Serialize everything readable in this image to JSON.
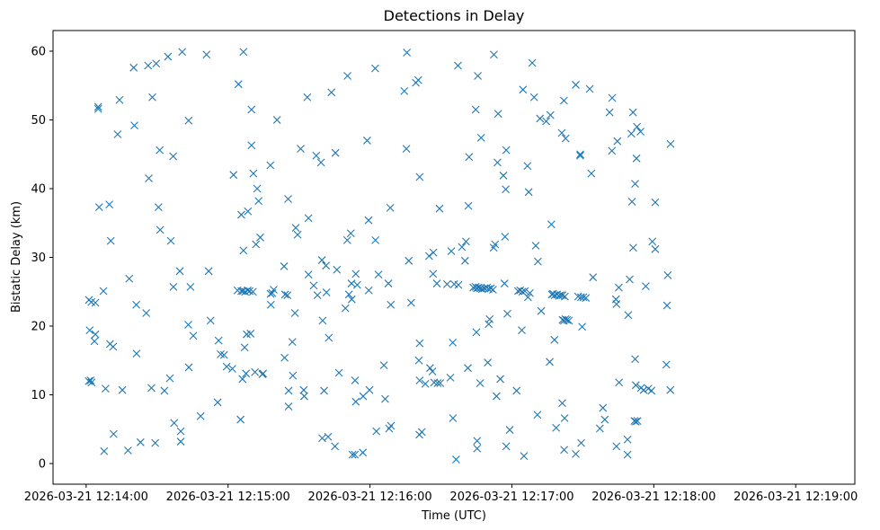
{
  "chart_data": {
    "type": "scatter",
    "title": "Detections in Delay",
    "xlabel": "Time (UTC)",
    "ylabel": "Bistatic Delay (km)",
    "x_unit": "seconds after 2026-03-21 12:14:00 UTC",
    "xlim": [
      -14,
      325
    ],
    "ylim": [
      -3,
      63
    ],
    "marker": "x",
    "color": "#1f77b4",
    "x_ticks": [
      {
        "value": 0,
        "label": "2026-03-21 12:14:00"
      },
      {
        "value": 60,
        "label": "2026-03-21 12:15:00"
      },
      {
        "value": 120,
        "label": "2026-03-21 12:16:00"
      },
      {
        "value": 180,
        "label": "2026-03-21 12:17:00"
      },
      {
        "value": 240,
        "label": "2026-03-21 12:18:00"
      },
      {
        "value": 300,
        "label": "2026-03-21 12:19:00"
      }
    ],
    "y_ticks": [
      {
        "value": 0,
        "label": "0"
      },
      {
        "value": 10,
        "label": "10"
      },
      {
        "value": 20,
        "label": "20"
      },
      {
        "value": 30,
        "label": "30"
      },
      {
        "value": 40,
        "label": "40"
      },
      {
        "value": 50,
        "label": "50"
      },
      {
        "value": 60,
        "label": "60"
      }
    ],
    "points": [
      [
        5.1,
        51.9
      ],
      [
        5.1,
        51.6
      ],
      [
        5.5,
        37.3
      ],
      [
        1.2,
        23.8
      ],
      [
        2.2,
        23.5
      ],
      [
        3.9,
        23.4
      ],
      [
        1.5,
        19.4
      ],
      [
        3.9,
        18.8
      ],
      [
        3.5,
        17.8
      ],
      [
        1.1,
        12.0
      ],
      [
        1.9,
        12.1
      ],
      [
        2.3,
        11.8
      ],
      [
        7.3,
        25.1
      ],
      [
        9.8,
        37.7
      ],
      [
        10.4,
        32.4
      ],
      [
        10.1,
        17.4
      ],
      [
        11.4,
        17.0
      ],
      [
        8.2,
        10.9
      ],
      [
        7.6,
        1.8
      ],
      [
        11.6,
        4.3
      ],
      [
        13.3,
        47.9
      ],
      [
        14.1,
        52.9
      ],
      [
        15.3,
        10.7
      ],
      [
        18.2,
        26.9
      ],
      [
        17.7,
        1.9
      ],
      [
        20.1,
        57.6
      ],
      [
        20.4,
        49.2
      ],
      [
        21.3,
        16.0
      ],
      [
        21.2,
        23.1
      ],
      [
        23.0,
        3.1
      ],
      [
        25.4,
        21.9
      ],
      [
        26.2,
        57.9
      ],
      [
        26.5,
        41.5
      ],
      [
        28.0,
        53.3
      ],
      [
        27.6,
        11.0
      ],
      [
        29.6,
        58.2
      ],
      [
        29.2,
        3.0
      ],
      [
        30.6,
        37.3
      ],
      [
        31.1,
        45.6
      ],
      [
        31.3,
        34.0
      ],
      [
        33.1,
        10.6
      ],
      [
        34.6,
        59.2
      ],
      [
        35.4,
        12.4
      ],
      [
        35.8,
        32.4
      ],
      [
        36.8,
        44.7
      ],
      [
        36.9,
        25.7
      ],
      [
        37.2,
        5.9
      ],
      [
        39.6,
        28.0
      ],
      [
        40.6,
        59.9
      ],
      [
        40.0,
        4.7
      ],
      [
        40.0,
        3.2
      ],
      [
        43.3,
        49.9
      ],
      [
        43.2,
        20.2
      ],
      [
        43.4,
        14.0
      ],
      [
        44.1,
        25.7
      ],
      [
        45.3,
        18.6
      ],
      [
        48.4,
        6.9
      ],
      [
        50.9,
        59.5
      ],
      [
        51.8,
        28.0
      ],
      [
        52.6,
        20.8
      ],
      [
        55.6,
        8.9
      ],
      [
        56.0,
        17.9
      ],
      [
        56.9,
        15.9
      ],
      [
        59.4,
        14.1
      ],
      [
        58.3,
        15.8
      ],
      [
        61.8,
        13.8
      ],
      [
        62.3,
        42.0
      ],
      [
        64.0,
        25.2
      ],
      [
        64.4,
        55.2
      ],
      [
        65.3,
        6.4
      ],
      [
        65.6,
        36.2
      ],
      [
        65.6,
        25.1
      ],
      [
        66.5,
        59.9
      ],
      [
        66.3,
        25.1
      ],
      [
        66.1,
        12.3
      ],
      [
        66.5,
        31.0
      ],
      [
        67.0,
        16.9
      ],
      [
        67.2,
        25.0
      ],
      [
        67.9,
        18.8
      ],
      [
        67.6,
        13.1
      ],
      [
        68.4,
        36.7
      ],
      [
        68.3,
        25.2
      ],
      [
        69.1,
        25.1
      ],
      [
        69.5,
        18.9
      ],
      [
        69.9,
        51.5
      ],
      [
        69.9,
        46.3
      ],
      [
        70.7,
        42.2
      ],
      [
        70.5,
        25.0
      ],
      [
        72.3,
        40.0
      ],
      [
        71.8,
        31.9
      ],
      [
        71.4,
        13.3
      ],
      [
        72.9,
        38.2
      ],
      [
        73.6,
        32.9
      ],
      [
        74.5,
        13.0
      ],
      [
        74.8,
        13.1
      ],
      [
        77.9,
        43.4
      ],
      [
        78.0,
        24.7
      ],
      [
        78.1,
        23.1
      ],
      [
        78.7,
        24.8
      ],
      [
        79.3,
        25.3
      ],
      [
        80.7,
        50.0
      ],
      [
        83.7,
        28.7
      ],
      [
        84.1,
        24.6
      ],
      [
        83.9,
        15.4
      ],
      [
        85.1,
        24.5
      ],
      [
        85.4,
        38.5
      ],
      [
        85.6,
        10.6
      ],
      [
        85.6,
        8.3
      ],
      [
        87.2,
        17.7
      ],
      [
        87.4,
        12.8
      ],
      [
        88.6,
        34.3
      ],
      [
        88.3,
        21.9
      ],
      [
        89.4,
        33.3
      ],
      [
        90.7,
        45.8
      ],
      [
        92.0,
        10.7
      ],
      [
        92.2,
        9.8
      ],
      [
        93.5,
        53.3
      ],
      [
        94.0,
        35.7
      ],
      [
        94.0,
        27.5
      ],
      [
        96.2,
        25.9
      ],
      [
        97.3,
        44.8
      ],
      [
        97.8,
        24.5
      ],
      [
        99.3,
        43.8
      ],
      [
        99.7,
        29.6
      ],
      [
        100.0,
        20.8
      ],
      [
        100.6,
        10.6
      ],
      [
        101.4,
        28.8
      ],
      [
        101.6,
        24.9
      ],
      [
        102.6,
        18.3
      ],
      [
        103.7,
        54.0
      ],
      [
        105.4,
        45.2
      ],
      [
        106.0,
        28.2
      ],
      [
        106.9,
        13.2
      ],
      [
        99.8,
        3.7
      ],
      [
        102.3,
        3.9
      ],
      [
        105.2,
        2.5
      ],
      [
        110.5,
        56.4
      ],
      [
        110.4,
        32.5
      ],
      [
        111.1,
        24.6
      ],
      [
        111.9,
        33.5
      ],
      [
        112.2,
        26.2
      ],
      [
        112.3,
        23.9
      ],
      [
        109.6,
        22.6
      ],
      [
        114.0,
        27.6
      ],
      [
        114.6,
        26.0
      ],
      [
        113.7,
        12.1
      ],
      [
        114.0,
        9.0
      ],
      [
        112.6,
        1.3
      ],
      [
        113.6,
        1.3
      ],
      [
        117.1,
        9.8
      ],
      [
        117.0,
        1.6
      ],
      [
        118.8,
        47.0
      ],
      [
        119.4,
        35.4
      ],
      [
        119.5,
        25.2
      ],
      [
        119.8,
        10.7
      ],
      [
        122.2,
        57.5
      ],
      [
        122.3,
        32.5
      ],
      [
        122.7,
        4.7
      ],
      [
        123.6,
        27.5
      ],
      [
        125.9,
        14.3
      ],
      [
        126.4,
        9.4
      ],
      [
        127.8,
        26.2
      ],
      [
        128.1,
        5.1
      ],
      [
        128.9,
        5.5
      ],
      [
        128.6,
        37.2
      ],
      [
        128.8,
        23.1
      ],
      [
        134.5,
        54.2
      ],
      [
        135.6,
        59.8
      ],
      [
        135.4,
        45.8
      ],
      [
        136.4,
        29.5
      ],
      [
        137.4,
        23.4
      ],
      [
        139.4,
        55.4
      ],
      [
        140.4,
        55.8
      ],
      [
        141.0,
        41.7
      ],
      [
        141.0,
        17.5
      ],
      [
        140.7,
        15.0
      ],
      [
        141.0,
        12.1
      ],
      [
        140.9,
        4.2
      ],
      [
        141.9,
        4.6
      ],
      [
        143.4,
        11.6
      ],
      [
        145.0,
        30.2
      ],
      [
        146.8,
        30.7
      ],
      [
        146.7,
        27.6
      ],
      [
        145.4,
        13.9
      ],
      [
        146.4,
        13.4
      ],
      [
        147.1,
        11.8
      ],
      [
        148.3,
        26.2
      ],
      [
        148.6,
        11.7
      ],
      [
        149.7,
        11.7
      ],
      [
        149.4,
        37.1
      ],
      [
        152.6,
        26.1
      ],
      [
        154.0,
        12.5
      ],
      [
        154.4,
        30.9
      ],
      [
        155.0,
        17.6
      ],
      [
        155.1,
        6.6
      ],
      [
        155.6,
        26.1
      ],
      [
        156.4,
        0.6
      ],
      [
        157.2,
        57.9
      ],
      [
        157.4,
        26.0
      ],
      [
        158.9,
        31.5
      ],
      [
        160.2,
        29.5
      ],
      [
        160.6,
        32.3
      ],
      [
        161.6,
        37.5
      ],
      [
        161.4,
        13.9
      ],
      [
        161.9,
        44.6
      ],
      [
        163.7,
        25.6
      ],
      [
        164.7,
        25.7
      ],
      [
        165.2,
        25.5
      ],
      [
        165.9,
        25.6
      ],
      [
        166.7,
        25.5
      ],
      [
        167.4,
        25.4
      ],
      [
        168.4,
        25.5
      ],
      [
        169.5,
        25.6
      ],
      [
        170.1,
        25.4
      ],
      [
        171.1,
        25.5
      ],
      [
        172.0,
        25.3
      ],
      [
        164.7,
        51.5
      ],
      [
        165.6,
        56.4
      ],
      [
        165.0,
        19.1
      ],
      [
        165.3,
        3.3
      ],
      [
        165.3,
        2.2
      ],
      [
        167.0,
        47.4
      ],
      [
        166.6,
        11.7
      ],
      [
        169.8,
        14.7
      ],
      [
        170.6,
        21.0
      ],
      [
        170.2,
        20.3
      ],
      [
        172.3,
        31.4
      ],
      [
        172.4,
        59.5
      ],
      [
        172.9,
        31.9
      ],
      [
        174.2,
        50.9
      ],
      [
        173.5,
        9.8
      ],
      [
        173.9,
        43.8
      ],
      [
        175.1,
        12.3
      ],
      [
        176.4,
        41.9
      ],
      [
        177.6,
        45.6
      ],
      [
        177.4,
        39.9
      ],
      [
        177.1,
        33.0
      ],
      [
        176.9,
        26.2
      ],
      [
        178.1,
        21.8
      ],
      [
        177.6,
        2.5
      ],
      [
        179.1,
        4.9
      ],
      [
        182.0,
        10.6
      ],
      [
        182.6,
        25.1
      ],
      [
        183.5,
        25.2
      ],
      [
        184.4,
        25.0
      ],
      [
        185.5,
        25.1
      ],
      [
        184.7,
        54.4
      ],
      [
        184.2,
        19.4
      ],
      [
        185.1,
        1.1
      ],
      [
        186.6,
        43.3
      ],
      [
        187.1,
        39.5
      ],
      [
        186.8,
        24.2
      ],
      [
        187.6,
        24.8
      ],
      [
        188.6,
        58.3
      ],
      [
        189.4,
        53.3
      ],
      [
        190.1,
        31.7
      ],
      [
        191.0,
        29.4
      ],
      [
        190.8,
        7.1
      ],
      [
        191.9,
        50.2
      ],
      [
        192.4,
        22.2
      ],
      [
        194.5,
        49.8
      ],
      [
        196.3,
        50.7
      ],
      [
        196.0,
        14.8
      ],
      [
        196.7,
        34.8
      ],
      [
        196.9,
        24.6
      ],
      [
        197.4,
        24.7
      ],
      [
        198.1,
        24.5
      ],
      [
        199.1,
        24.6
      ],
      [
        199.9,
        24.4
      ],
      [
        200.6,
        24.5
      ],
      [
        201.4,
        24.5
      ],
      [
        202.4,
        24.3
      ],
      [
        198.0,
        18.0
      ],
      [
        198.7,
        5.2
      ],
      [
        201.1,
        48.1
      ],
      [
        201.3,
        8.8
      ],
      [
        201.4,
        20.9
      ],
      [
        202.0,
        20.8
      ],
      [
        202.6,
        21.0
      ],
      [
        203.3,
        20.9
      ],
      [
        204.1,
        20.8
      ],
      [
        202.7,
        47.3
      ],
      [
        202.0,
        52.8
      ],
      [
        202.3,
        6.6
      ],
      [
        202.1,
        2.0
      ],
      [
        207.0,
        55.1
      ],
      [
        207.0,
        1.4
      ],
      [
        208.9,
        45.0
      ],
      [
        208.9,
        44.8
      ],
      [
        208.0,
        24.3
      ],
      [
        209.2,
        24.2
      ],
      [
        210.2,
        24.2
      ],
      [
        211.3,
        24.1
      ],
      [
        209.7,
        19.9
      ],
      [
        209.3,
        3.0
      ],
      [
        212.9,
        54.5
      ],
      [
        213.6,
        42.2
      ],
      [
        214.3,
        27.1
      ],
      [
        218.5,
        8.1
      ],
      [
        217.2,
        5.1
      ],
      [
        219.3,
        6.4
      ],
      [
        221.3,
        51.1
      ],
      [
        222.4,
        53.2
      ],
      [
        222.3,
        45.5
      ],
      [
        224.6,
        46.9
      ],
      [
        224.0,
        23.9
      ],
      [
        224.2,
        23.2
      ],
      [
        225.2,
        25.6
      ],
      [
        224.2,
        2.5
      ],
      [
        225.3,
        11.8
      ],
      [
        228.9,
        1.3
      ],
      [
        228.9,
        3.5
      ],
      [
        229.2,
        21.6
      ],
      [
        229.8,
        26.8
      ],
      [
        231.2,
        51.1
      ],
      [
        230.5,
        48.0
      ],
      [
        230.8,
        38.1
      ],
      [
        231.3,
        31.4
      ],
      [
        232.1,
        40.7
      ],
      [
        232.1,
        15.2
      ],
      [
        232.4,
        11.4
      ],
      [
        232.9,
        49.0
      ],
      [
        232.7,
        44.4
      ],
      [
        234.4,
        48.3
      ],
      [
        231.8,
        6.2
      ],
      [
        232.4,
        6.1
      ],
      [
        233.1,
        6.2
      ],
      [
        234.6,
        11.0
      ],
      [
        235.7,
        10.7
      ],
      [
        236.6,
        25.8
      ],
      [
        237.7,
        10.9
      ],
      [
        239.0,
        10.6
      ],
      [
        239.4,
        32.3
      ],
      [
        240.6,
        38.0
      ],
      [
        240.6,
        31.2
      ],
      [
        245.3,
        14.4
      ],
      [
        245.9,
        27.4
      ],
      [
        245.6,
        23.0
      ],
      [
        247.1,
        46.5
      ],
      [
        247.0,
        10.7
      ]
    ]
  }
}
